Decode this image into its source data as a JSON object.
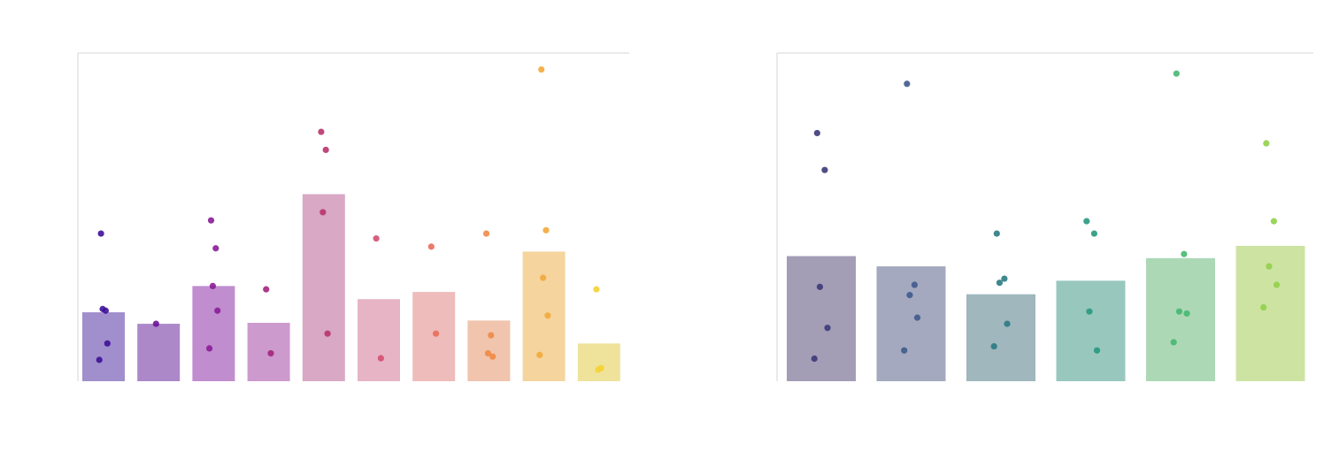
{
  "chart_data": [
    {
      "type": "bar",
      "overlay": "scatter",
      "categories": [
        "",
        "",
        "",
        "",
        "",
        "",
        "",
        "",
        "",
        ""
      ],
      "values": [
        2.1,
        1.75,
        2.9,
        1.78,
        5.7,
        2.5,
        2.72,
        1.85,
        3.95,
        1.15
      ],
      "colors": [
        "#a08fcc",
        "#ac88c9",
        "#c08dcf",
        "#cd9acd",
        "#d8a8c5",
        "#e6b4c5",
        "#edbcbb",
        "#f1c4ae",
        "#f5d49e",
        "#efe39c"
      ],
      "point_colors": [
        "#3f0f99",
        "#6c1499",
        "#8a1d96",
        "#a5247c",
        "#b8336b",
        "#d44f70",
        "#e96b5a",
        "#ef8a44",
        "#f3a93b",
        "#f5d235"
      ],
      "points": [
        [
          4.5,
          2.15,
          2.2,
          1.15,
          0.65
        ],
        [
          1.75
        ],
        [
          4.9,
          4.05,
          2.9,
          2.15,
          1.0
        ],
        [
          2.8,
          0.85
        ],
        [
          7.6,
          7.05,
          5.15,
          1.45
        ],
        [
          4.35,
          0.7
        ],
        [
          4.1,
          1.45
        ],
        [
          4.5,
          1.4,
          0.85,
          0.75
        ],
        [
          9.5,
          4.6,
          3.15,
          2.0,
          0.8
        ],
        [
          2.8,
          0.4,
          0.35
        ]
      ],
      "ylim": [
        0,
        10
      ],
      "grid": false,
      "title": "",
      "xlabel": "",
      "ylabel": ""
    },
    {
      "type": "bar",
      "overlay": "scatter",
      "categories": [
        "",
        "",
        "",
        "",
        "",
        ""
      ],
      "values": [
        3.05,
        2.8,
        2.12,
        2.45,
        3.0,
        3.3
      ],
      "colors": [
        "#a49db6",
        "#a4a9bf",
        "#9fb7bd",
        "#98c7be",
        "#acd8b6",
        "#cde3a2"
      ],
      "point_colors": [
        "#3c3a78",
        "#3f5a8c",
        "#2b7a83",
        "#28987e",
        "#46b870",
        "#92cf4a"
      ],
      "points": [
        [
          6.05,
          5.15,
          2.3,
          1.3,
          0.55
        ],
        [
          7.25,
          2.35,
          2.1,
          1.55,
          0.75
        ],
        [
          3.6,
          2.5,
          2.4,
          1.4,
          0.85
        ],
        [
          3.9,
          3.6,
          1.7,
          0.75
        ],
        [
          7.5,
          3.1,
          1.7,
          1.65,
          0.95
        ],
        [
          5.8,
          3.9,
          2.8,
          2.35,
          1.8
        ]
      ],
      "ylim": [
        0,
        8
      ],
      "grid": false,
      "title": "",
      "xlabel": "",
      "ylabel": ""
    }
  ]
}
